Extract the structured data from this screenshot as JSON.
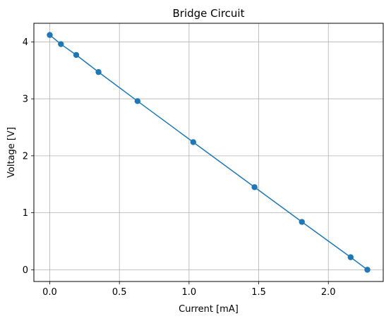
{
  "chart_data": {
    "type": "line",
    "title": "Bridge Circuit",
    "xlabel": "Current [mA]",
    "ylabel": "Voltage [V]",
    "xlim": [
      -0.114,
      2.394
    ],
    "ylim": [
      -0.206,
      4.326
    ],
    "xticks": [
      0.0,
      0.5,
      1.0,
      1.5,
      2.0
    ],
    "xtick_labels": [
      "0.0",
      "0.5",
      "1.0",
      "1.5",
      "2.0"
    ],
    "yticks": [
      0,
      1,
      2,
      3,
      4
    ],
    "ytick_labels": [
      "0",
      "1",
      "2",
      "3",
      "4"
    ],
    "grid": true,
    "series": [
      {
        "markers": true,
        "color": "#1f77b4",
        "x": [
          0.0,
          0.08,
          0.19,
          0.35,
          0.63,
          1.03,
          1.47,
          1.81,
          2.16,
          2.28
        ],
        "y": [
          4.12,
          3.96,
          3.77,
          3.47,
          2.96,
          2.24,
          1.45,
          0.84,
          0.22,
          0.0
        ]
      }
    ]
  }
}
